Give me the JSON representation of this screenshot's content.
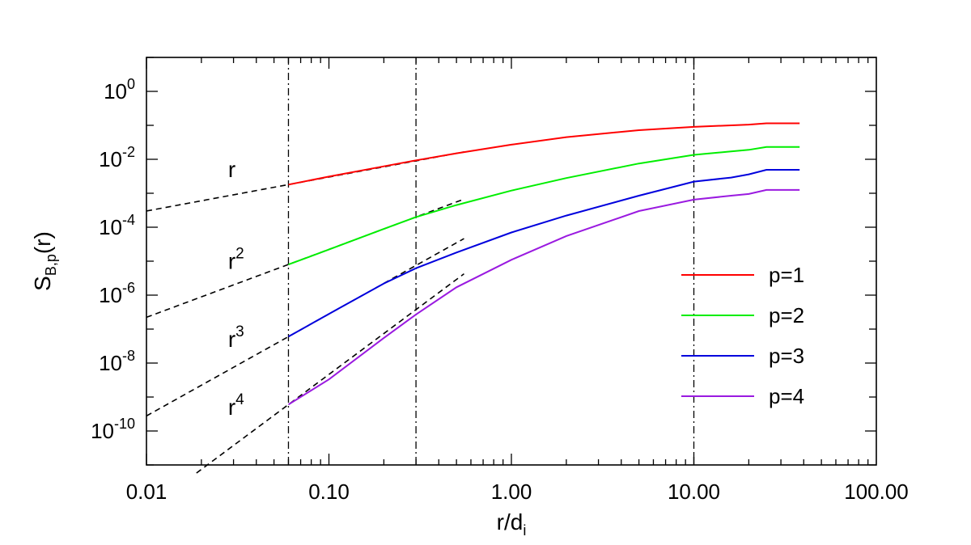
{
  "chart_data": {
    "type": "line",
    "title": "",
    "xlabel": "r/d",
    "xlabel_sub": "i",
    "ylabel": "S",
    "ylabel_sub": "B,p",
    "ylabel_suffix": "(r)",
    "x_scale": "log",
    "y_scale": "log",
    "xlim": [
      0.01,
      100
    ],
    "ylim": [
      1e-11,
      10.0
    ],
    "grid": false,
    "legend_position": "right-middle",
    "x_ticks": [
      {
        "value": 0.01,
        "label": "0.01"
      },
      {
        "value": 0.1,
        "label": "0.10"
      },
      {
        "value": 1,
        "label": "1.00"
      },
      {
        "value": 10,
        "label": "10.00"
      },
      {
        "value": 100,
        "label": "100.00"
      }
    ],
    "y_ticks": [
      {
        "value": 1,
        "base": "10",
        "exp": "0"
      },
      {
        "value": 0.01,
        "base": "10",
        "exp": "-2"
      },
      {
        "value": 0.0001,
        "base": "10",
        "exp": "-4"
      },
      {
        "value": 1e-06,
        "base": "10",
        "exp": "-6"
      },
      {
        "value": 1e-08,
        "base": "10",
        "exp": "-8"
      },
      {
        "value": 1e-10,
        "base": "10",
        "exp": "-10"
      }
    ],
    "vlines": [
      0.06,
      0.3,
      10
    ],
    "series": [
      {
        "name": "p=1",
        "color": "#ff0000",
        "x": [
          0.06,
          0.1,
          0.2,
          0.3,
          0.5,
          1,
          2,
          5,
          10,
          20,
          25,
          30,
          38
        ],
        "y": [
          0.0018,
          0.0031,
          0.0062,
          0.0093,
          0.015,
          0.027,
          0.045,
          0.072,
          0.09,
          0.105,
          0.115,
          0.115,
          0.115
        ]
      },
      {
        "name": "p=2",
        "color": "#00ee00",
        "x": [
          0.06,
          0.1,
          0.2,
          0.3,
          0.5,
          1,
          2,
          5,
          10,
          16,
          20,
          25,
          30,
          38
        ],
        "y": [
          8e-06,
          2.2e-05,
          8.9e-05,
          0.0002,
          0.00045,
          0.0012,
          0.0028,
          0.0075,
          0.0135,
          0.017,
          0.019,
          0.023,
          0.023,
          0.023
        ]
      },
      {
        "name": "p=3",
        "color": "#0000dd",
        "x": [
          0.06,
          0.1,
          0.2,
          0.3,
          0.5,
          1,
          2,
          5,
          10,
          16,
          20,
          25,
          30,
          38
        ],
        "y": [
          6e-08,
          2.8e-07,
          2.2e-06,
          6.2e-06,
          1.8e-05,
          7e-05,
          0.00022,
          0.00085,
          0.0022,
          0.0029,
          0.0036,
          0.0049,
          0.0049,
          0.0049
        ]
      },
      {
        "name": "p=4",
        "color": "#9a1ae0",
        "x": [
          0.06,
          0.1,
          0.2,
          0.3,
          0.5,
          1,
          2,
          5,
          10,
          16,
          20,
          25,
          30,
          38
        ],
        "y": [
          6e-10,
          3.3e-09,
          5.5e-08,
          2.7e-07,
          1.7e-06,
          1.1e-05,
          5.5e-05,
          0.0003,
          0.00065,
          0.00085,
          0.00095,
          0.00125,
          0.00125,
          0.00125
        ]
      }
    ],
    "reference_lines": [
      {
        "label_base": "r",
        "label_exp": "",
        "label_at": [
          0.028,
          0.003
        ],
        "x_start": 0.01,
        "x_end": 0.55,
        "slope": 1,
        "anchor": [
          0.06,
          0.0018
        ]
      },
      {
        "label_base": "r",
        "label_exp": "2",
        "label_at": [
          0.028,
          6e-06
        ],
        "x_start": 0.01,
        "x_end": 0.55,
        "slope": 2,
        "anchor": [
          0.06,
          8e-06
        ]
      },
      {
        "label_base": "r",
        "label_exp": "3",
        "label_at": [
          0.028,
          3e-08
        ],
        "x_start": 0.01,
        "x_end": 0.55,
        "slope": 3,
        "anchor": [
          0.06,
          6e-08
        ]
      },
      {
        "label_base": "r",
        "label_exp": "4",
        "label_at": [
          0.028,
          3e-10
        ],
        "x_start": 0.0188,
        "x_end": 0.55,
        "slope": 4,
        "anchor": [
          0.06,
          6e-10
        ]
      }
    ]
  }
}
